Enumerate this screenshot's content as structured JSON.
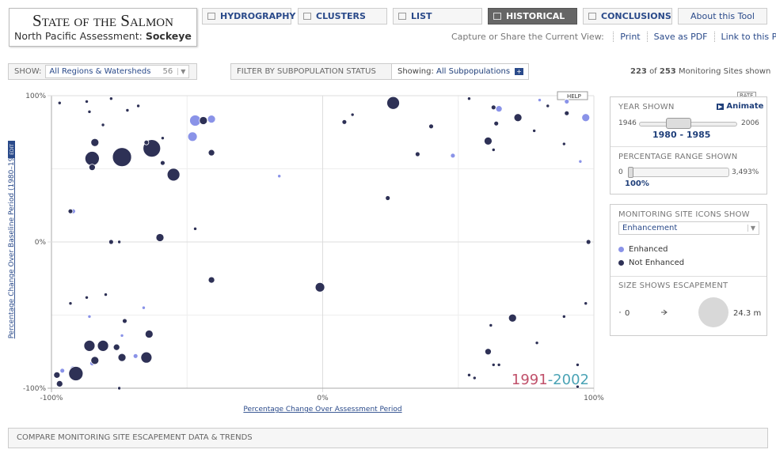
{
  "header": {
    "title": "State of the Salmon",
    "subtitle": "North Pacific Assessment:",
    "species": "Sockeye"
  },
  "nav": [
    {
      "label": "HYDROGRAPHY",
      "active": false
    },
    {
      "label": "CLUSTERS",
      "active": false
    },
    {
      "label": "LIST",
      "active": false
    },
    {
      "label": "HISTORICAL",
      "active": true
    },
    {
      "label": "CONCLUSIONS",
      "active": false
    },
    {
      "label": "About this Tool",
      "active": false
    }
  ],
  "share": {
    "label": "Capture or Share the Current View:",
    "links": [
      "Print",
      "Save as PDF",
      "Link to this Page"
    ]
  },
  "filters": {
    "show_label": "SHOW:",
    "region": "All Regions & Watersheds",
    "region_count": "56",
    "subpop_label": "FILTER BY SUBPOPULATION STATUS",
    "showing_label": "Showing:",
    "showing_value": "All Subpopulations",
    "sites_shown": "223",
    "sites_of": "of",
    "sites_total": "253",
    "sites_suffix": "Monitoring Sites shown"
  },
  "chart_data": {
    "type": "scatter",
    "xlabel": "Percentage Change Over Assessment Period",
    "ylabel": "Percentage Change Over Baseline Period (1980–1985)",
    "help": "HELP",
    "edit": "EDIT",
    "period": [
      "1991",
      "-2002"
    ],
    "xlim": [
      -100,
      100
    ],
    "ylim": [
      -100,
      100
    ],
    "xticks": [
      {
        "value": -100,
        "label": "-100%"
      },
      {
        "value": 0,
        "label": "0%"
      },
      {
        "value": 100,
        "label": "100%"
      }
    ],
    "yticks": [
      {
        "value": -100,
        "label": "-100%"
      },
      {
        "value": 0,
        "label": "0%"
      },
      {
        "value": 100,
        "label": "100%"
      }
    ],
    "xminor": [
      -50,
      50
    ],
    "yminor": [
      -50,
      50
    ],
    "series": [
      {
        "name": "Enhanced",
        "color": "#8a93e8",
        "x": [
          -47,
          -41,
          -48,
          -16,
          -92,
          48,
          65,
          80,
          90,
          97,
          95,
          -66,
          -86,
          -74,
          -69,
          -92,
          -96,
          -85
        ],
        "values": [
          83,
          84,
          72,
          45,
          21,
          59,
          91,
          97,
          96,
          85,
          55,
          -45,
          -51,
          -64,
          -78,
          -87,
          -88,
          -83
        ],
        "sizes": [
          3.3,
          1.7,
          2.4,
          0.3,
          0.6,
          0.6,
          1.1,
          0.3,
          0.6,
          1.7,
          0.3,
          0.3,
          0.3,
          0.3,
          0.6,
          1.1,
          0.6,
          0.6
        ]
      },
      {
        "name": "Not Enhanced",
        "color": "#2e3156",
        "x": [
          -97,
          -87,
          -78,
          -72,
          -68,
          -86,
          -81,
          -84,
          -85,
          -85,
          -74,
          -63,
          -65,
          -59,
          -59,
          -55,
          -44,
          -41,
          -93,
          -78,
          -75,
          -60,
          -47,
          -41,
          -1,
          8,
          11,
          26,
          40,
          35,
          24,
          54,
          63,
          64,
          72,
          61,
          63,
          78,
          83,
          90,
          98,
          89,
          97,
          -93,
          -87,
          -80,
          -73,
          -86,
          -81,
          -84,
          -76,
          -64,
          -65,
          -74,
          -91,
          -98,
          -97,
          -75,
          62,
          70,
          79,
          61,
          63,
          65,
          54,
          56,
          89,
          94,
          94
        ],
        "values": [
          95,
          96,
          98,
          90,
          93,
          89,
          80,
          68,
          57,
          51,
          58,
          64,
          68,
          71,
          54,
          46,
          83,
          61,
          21,
          0,
          0,
          3,
          9,
          -26,
          -31,
          82,
          87,
          95,
          79,
          60,
          30,
          98,
          92,
          81,
          85,
          69,
          63,
          76,
          93,
          88,
          0,
          67,
          -42,
          -42,
          -38,
          -36,
          -54,
          -71,
          -71,
          -81,
          -72,
          -63,
          -79,
          -79,
          -90,
          -91,
          -97,
          -100,
          -57,
          -52,
          -69,
          -75,
          -84,
          -84,
          -91,
          -93,
          -51,
          -84,
          -99
        ],
        "sizes": [
          0.3,
          0.3,
          0.3,
          0.3,
          0.3,
          0.3,
          0.3,
          1.7,
          5.5,
          1.1,
          9.7,
          8.2,
          0.6,
          0.3,
          0.6,
          4.3,
          1.7,
          1.1,
          0.6,
          0.6,
          0.3,
          1.7,
          0.3,
          1.1,
          2.4,
          0.6,
          0.3,
          4.3,
          0.6,
          0.6,
          0.6,
          0.3,
          0.6,
          0.6,
          1.7,
          1.7,
          0.3,
          0.3,
          0.3,
          0.6,
          0.6,
          0.3,
          0.3,
          0.3,
          0.3,
          0.3,
          0.6,
          3.3,
          3.3,
          1.7,
          1.1,
          1.7,
          3.3,
          1.7,
          5.5,
          1.1,
          1.1,
          0.3,
          0.3,
          1.7,
          0.3,
          1.1,
          0.3,
          0.3,
          0.3,
          0.3,
          0.3,
          0.3,
          0.3
        ]
      }
    ]
  },
  "controls": {
    "rate": "RATE",
    "year_title": "YEAR SHOWN",
    "animate": "Animate",
    "year_min": "1946",
    "year_max": "2006",
    "year_range": "1980 - 1985",
    "pct_title": "PERCENTAGE RANGE SHOWN",
    "pct_min": "0",
    "pct_max": "3,493%",
    "pct_value": "100%",
    "icons_title": "MONITORING SITE ICONS SHOW",
    "icons_select": "Enhancement",
    "size_title": "SIZE SHOWS ESCAPEMENT",
    "size_min": "0",
    "size_max": {
      "value": 24.3,
      "label": "24.3 m"
    }
  },
  "footer": "COMPARE MONITORING SITE ESCAPEMENT DATA & TRENDS"
}
